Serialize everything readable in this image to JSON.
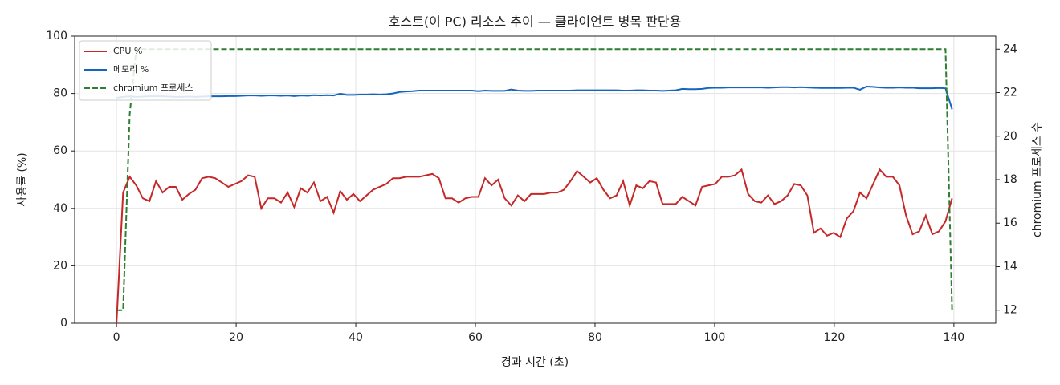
{
  "chart_data": {
    "type": "line",
    "title": "호스트(이 PC) 리소스 추이 — 클라이언트 병목 판단용",
    "xlabel": "경과 시간 (초)",
    "ylabel": "사용률 (%)",
    "y2label": "chromium 프로세스 수",
    "x": [
      0,
      1.1,
      2.2,
      3.3,
      4.4,
      5.5,
      6.6,
      7.7,
      8.8,
      9.9,
      11,
      12.1,
      13.2,
      14.3,
      15.4,
      16.5,
      17.6,
      18.7,
      19.8,
      20.9,
      22,
      23.1,
      24.2,
      25.3,
      26.4,
      27.5,
      28.6,
      29.7,
      30.8,
      31.9,
      33,
      34.1,
      35.2,
      36.3,
      37.4,
      38.5,
      39.6,
      40.7,
      41.8,
      42.9,
      44,
      45.1,
      46.2,
      47.3,
      48.4,
      49.5,
      50.6,
      51.7,
      52.8,
      53.9,
      55,
      56.1,
      57.2,
      58.3,
      59.4,
      60.5,
      61.6,
      62.7,
      63.8,
      64.9,
      66,
      67.1,
      68.2,
      69.3,
      70.4,
      71.5,
      72.6,
      73.7,
      74.8,
      75.9,
      77,
      78.1,
      79.2,
      80.3,
      81.4,
      82.5,
      83.6,
      84.7,
      85.8,
      86.9,
      88,
      89.1,
      90.2,
      91.3,
      92.4,
      93.5,
      94.6,
      95.7,
      96.8,
      97.9,
      99,
      100.1,
      101.2,
      102.3,
      103.4,
      104.5,
      105.6,
      106.7,
      107.8,
      108.9,
      110,
      111.1,
      112.2,
      113.3,
      114.4,
      115.5,
      116.6,
      117.7,
      118.8,
      119.9,
      121,
      122.1,
      123.2,
      124.3,
      125.4,
      126.5,
      127.6,
      128.7,
      129.8,
      130.9,
      132,
      133.1,
      134.2,
      135.3,
      136.4,
      137.5,
      138.6,
      139.7
    ],
    "series": [
      {
        "name": "CPU %",
        "color": "#c62828",
        "values": [
          0,
          45.5,
          51,
          48,
          43.5,
          42.5,
          49.5,
          45.5,
          47.5,
          47.5,
          43,
          45,
          46.5,
          50.5,
          51,
          50.5,
          49,
          47.5,
          48.5,
          49.5,
          51.5,
          51,
          40,
          43.5,
          43.5,
          42,
          45.5,
          40.5,
          47,
          45.5,
          49,
          42.5,
          44,
          38.5,
          46,
          43,
          45,
          42.5,
          44.5,
          46.5,
          47.5,
          48.5,
          50.5,
          50.5,
          51,
          51,
          51,
          51.5,
          52,
          50.5,
          43.5,
          43.5,
          42,
          43.5,
          44,
          44,
          50.5,
          48,
          50,
          43.5,
          41,
          44.5,
          42.5,
          45,
          45,
          45,
          45.5,
          45.5,
          46.5,
          49.5,
          53,
          51,
          49,
          50.5,
          46.5,
          43.5,
          44.5,
          49.5,
          41,
          48,
          47,
          49.5,
          49,
          41.5,
          41.5,
          41.5,
          44,
          42.5,
          41,
          47.5,
          48,
          48.5,
          51,
          51,
          51.5,
          53.5,
          45,
          42.5,
          42,
          44.5,
          41.5,
          42.5,
          44.5,
          48.5,
          48,
          44.5,
          31.5,
          33,
          30.5,
          31.5,
          30,
          36.5,
          39,
          45.5,
          43.5,
          48.5,
          53.5,
          51,
          51,
          48,
          37.5,
          31,
          32,
          37.5,
          31,
          32,
          35.5,
          43.5
        ]
      },
      {
        "name": "메모리 %",
        "color": "#1565c0",
        "values": [
          78.5,
          78.8,
          79,
          78.8,
          78.9,
          79,
          79,
          79,
          78.9,
          78.8,
          78.8,
          78.9,
          78.8,
          78.9,
          79,
          79,
          79,
          79.1,
          79.1,
          79.2,
          79.3,
          79.3,
          79.2,
          79.3,
          79.3,
          79.2,
          79.3,
          79.1,
          79.3,
          79.2,
          79.4,
          79.3,
          79.4,
          79.3,
          79.9,
          79.5,
          79.5,
          79.6,
          79.6,
          79.7,
          79.6,
          79.7,
          80,
          80.5,
          80.7,
          80.8,
          81,
          81,
          81,
          81,
          81,
          81,
          81,
          81,
          81,
          80.8,
          81,
          80.9,
          80.9,
          80.9,
          81.4,
          81,
          80.9,
          80.9,
          81,
          81,
          81,
          81,
          81,
          81,
          81.1,
          81.1,
          81.1,
          81.1,
          81.1,
          81.1,
          81.1,
          81,
          81,
          81.1,
          81.1,
          81,
          81,
          80.9,
          81,
          81.1,
          81.6,
          81.5,
          81.5,
          81.6,
          81.9,
          82,
          82,
          82.1,
          82.1,
          82.1,
          82.1,
          82.1,
          82.1,
          82,
          82.1,
          82.2,
          82.2,
          82.1,
          82.2,
          82.1,
          82,
          81.9,
          81.9,
          81.9,
          81.9,
          82,
          82,
          81.3,
          82.4,
          82.3,
          82.1,
          82,
          82,
          82.1,
          82,
          82,
          81.8,
          81.8,
          81.8,
          81.9,
          81.8,
          74.5
        ]
      },
      {
        "name": "chromium 프로세스",
        "color": "#2e7d32",
        "axis": "y2",
        "linestyle": "dashed",
        "values": [
          12,
          12,
          21,
          24,
          24,
          24,
          24,
          24,
          24,
          24,
          24,
          24,
          24,
          24,
          24,
          24,
          24,
          24,
          24,
          24,
          24,
          24,
          24,
          24,
          24,
          24,
          24,
          24,
          24,
          24,
          24,
          24,
          24,
          24,
          24,
          24,
          24,
          24,
          24,
          24,
          24,
          24,
          24,
          24,
          24,
          24,
          24,
          24,
          24,
          24,
          24,
          24,
          24,
          24,
          24,
          24,
          24,
          24,
          24,
          24,
          24,
          24,
          24,
          24,
          24,
          24,
          24,
          24,
          24,
          24,
          24,
          24,
          24,
          24,
          24,
          24,
          24,
          24,
          24,
          24,
          24,
          24,
          24,
          24,
          24,
          24,
          24,
          24,
          24,
          24,
          24,
          24,
          24,
          24,
          24,
          24,
          24,
          24,
          24,
          24,
          24,
          24,
          24,
          24,
          24,
          24,
          24,
          24,
          24,
          24,
          24,
          24,
          24,
          24,
          24,
          24,
          24,
          24,
          24,
          24,
          24,
          24,
          24,
          24,
          24,
          24,
          24,
          12
        ]
      }
    ],
    "xlim": [
      -7,
      147
    ],
    "xticks": [
      0,
      20,
      40,
      60,
      80,
      100,
      120,
      140
    ],
    "ylim": [
      0,
      100
    ],
    "yticks": [
      0,
      20,
      40,
      60,
      80,
      100
    ],
    "y2lim": [
      11.4,
      24.6
    ],
    "y2ticks": [
      12,
      14,
      16,
      18,
      20,
      22,
      24
    ],
    "grid": true,
    "legend": "upper-left"
  }
}
